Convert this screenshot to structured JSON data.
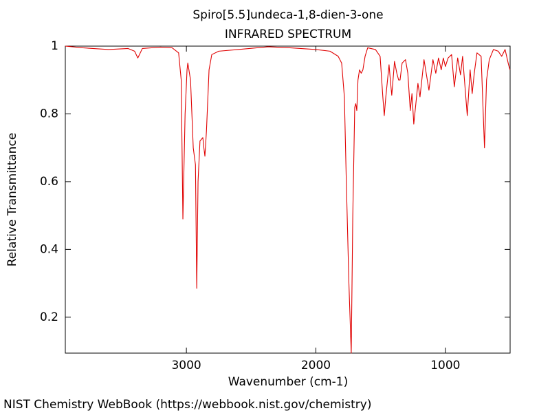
{
  "chart_data": {
    "type": "line",
    "title": "Spiro[5.5]undeca-1,8-dien-3-one",
    "subtitle": "INFRARED SPECTRUM",
    "x_label": "Wavenumber (cm-1)",
    "y_label": "Relative Transmittance",
    "footer": "NIST Chemistry WebBook (https://webbook.nist.gov/chemistry)",
    "xlim": [
      3935,
      500
    ],
    "ylim": [
      0.094,
      1.0
    ],
    "xticks": [
      3000,
      2000,
      1000
    ],
    "yticks": [
      0.2,
      0.4,
      0.6,
      0.8,
      1
    ],
    "x": [
      3935,
      3800,
      3600,
      3450,
      3400,
      3375,
      3340,
      3200,
      3110,
      3060,
      3040,
      3027,
      3010,
      2995,
      2989,
      2968,
      2947,
      2930,
      2920,
      2910,
      2895,
      2873,
      2865,
      2857,
      2845,
      2825,
      2804,
      2750,
      2600,
      2369,
      2200,
      2000,
      1891,
      1828,
      1801,
      1780,
      1765,
      1745,
      1727,
      1715,
      1700,
      1692,
      1684,
      1675,
      1663,
      1650,
      1637,
      1620,
      1600,
      1540,
      1504,
      1483,
      1472,
      1460,
      1435,
      1425,
      1414,
      1400,
      1393,
      1375,
      1361,
      1350,
      1334,
      1308,
      1290,
      1271,
      1258,
      1244,
      1212,
      1196,
      1165,
      1127,
      1096,
      1074,
      1053,
      1032,
      1016,
      1000,
      979,
      952,
      931,
      905,
      883,
      867,
      831,
      809,
      793,
      777,
      756,
      724,
      698,
      682,
      661,
      629,
      592,
      565,
      539,
      512,
      501
    ],
    "series": [
      {
        "name": "IR",
        "color": "#e00000",
        "values": [
          1.0,
          0.995,
          0.99,
          0.993,
          0.985,
          0.965,
          0.993,
          0.997,
          0.995,
          0.98,
          0.9,
          0.49,
          0.8,
          0.93,
          0.95,
          0.9,
          0.7,
          0.65,
          0.285,
          0.6,
          0.72,
          0.73,
          0.7,
          0.675,
          0.75,
          0.93,
          0.975,
          0.985,
          0.99,
          0.998,
          0.995,
          0.99,
          0.985,
          0.97,
          0.95,
          0.85,
          0.6,
          0.3,
          0.094,
          0.5,
          0.82,
          0.83,
          0.81,
          0.9,
          0.93,
          0.92,
          0.93,
          0.97,
          0.995,
          0.99,
          0.97,
          0.85,
          0.795,
          0.85,
          0.945,
          0.9,
          0.855,
          0.92,
          0.955,
          0.92,
          0.9,
          0.9,
          0.95,
          0.96,
          0.92,
          0.81,
          0.86,
          0.77,
          0.89,
          0.85,
          0.96,
          0.87,
          0.96,
          0.92,
          0.965,
          0.93,
          0.965,
          0.94,
          0.965,
          0.975,
          0.88,
          0.965,
          0.915,
          0.97,
          0.795,
          0.93,
          0.86,
          0.92,
          0.98,
          0.97,
          0.7,
          0.9,
          0.96,
          0.99,
          0.985,
          0.97,
          0.99,
          0.945,
          0.93
        ]
      }
    ]
  }
}
